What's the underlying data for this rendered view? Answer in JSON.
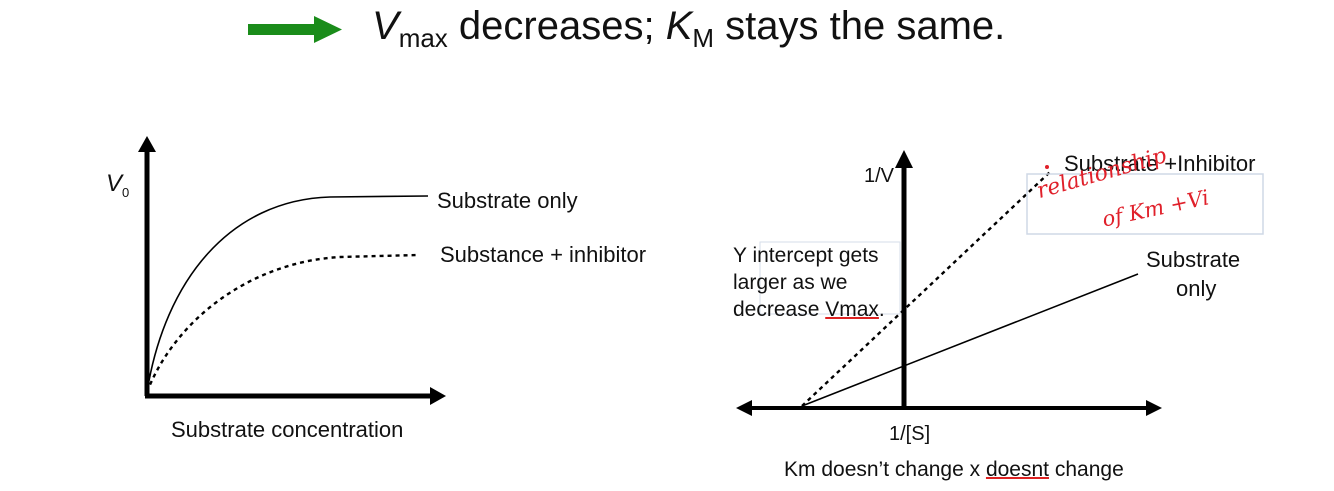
{
  "header": {
    "arrow_color": "#1a8c1a",
    "arrow_icon": "right-arrow-icon",
    "v_symbol": "V",
    "v_sub": "max",
    "middle_text": " decreases; ",
    "k_symbol": "K",
    "k_sub": "M",
    "end_text": " stays the same."
  },
  "left_chart": {
    "y_label": "V",
    "y_label_sub": "0",
    "x_label": "Substrate concentration",
    "series_solid": "Substrate only",
    "series_dashed": "Substance + inhibitor"
  },
  "right_chart": {
    "y_label": "1/V",
    "x_label": "1/[S]",
    "series_dashed": "Substrate +Inhibitor",
    "series_solid_line1": "Substrate",
    "series_solid_line2": "only"
  },
  "annotations": {
    "note_line1": "Y intercept gets",
    "note_line2": "larger as we",
    "note_line3_prefix": "decrease ",
    "note_line3_word": "Vmax",
    "note_line3_suffix": ".",
    "bottom_prefix": "Km doesn’t change x ",
    "bottom_word": "doesnt",
    "bottom_suffix": " change",
    "handwritten_line1": "relationship",
    "handwritten_line2": "of Km +Vi",
    "handwriting_color": "#e0202a"
  }
}
